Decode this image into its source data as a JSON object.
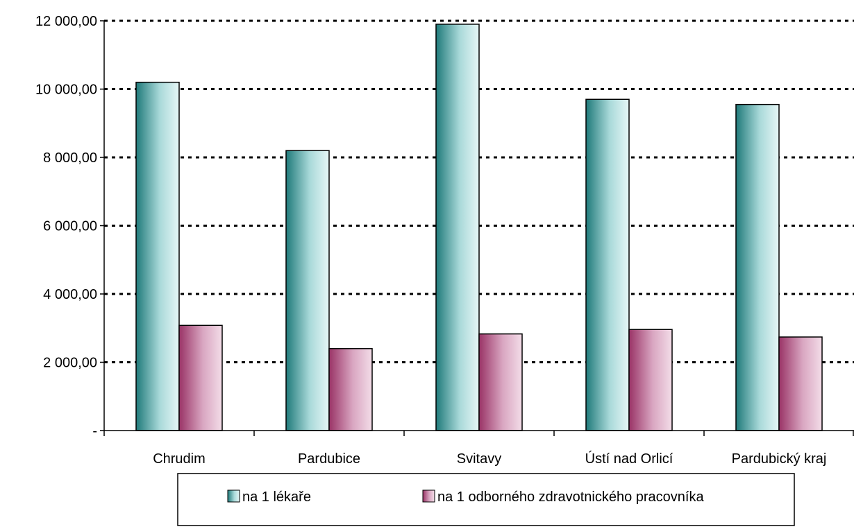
{
  "chart_data": {
    "type": "bar",
    "title": "",
    "xlabel": "",
    "ylabel": "",
    "categories": [
      "Chrudim",
      "Pardubice",
      "Svitavy",
      "Ústí nad Orlicí",
      "Pardubický kraj"
    ],
    "series": [
      {
        "name": "na 1 lékaře",
        "values": [
          10200,
          8200,
          11900,
          9700,
          9550
        ],
        "colors": {
          "dark": "#1f7a7a",
          "light": "#dff2f2"
        }
      },
      {
        "name": "na 1 odborného zdravotnického pracovníka",
        "values": [
          3080,
          2400,
          2830,
          2960,
          2740
        ],
        "colors": {
          "dark": "#993366",
          "light": "#f1d7e4"
        }
      }
    ],
    "ylim": [
      0,
      12000
    ],
    "yticks": [
      {
        "value": 0,
        "label": "-"
      },
      {
        "value": 2000,
        "label": "2 000,00"
      },
      {
        "value": 4000,
        "label": "4 000,00"
      },
      {
        "value": 6000,
        "label": "6 000,00"
      },
      {
        "value": 8000,
        "label": "8 000,00"
      },
      {
        "value": 10000,
        "label": "10 000,00"
      },
      {
        "value": 12000,
        "label": "12 000,00"
      }
    ],
    "grid": "dotted horizontal",
    "legend_position": "bottom"
  }
}
